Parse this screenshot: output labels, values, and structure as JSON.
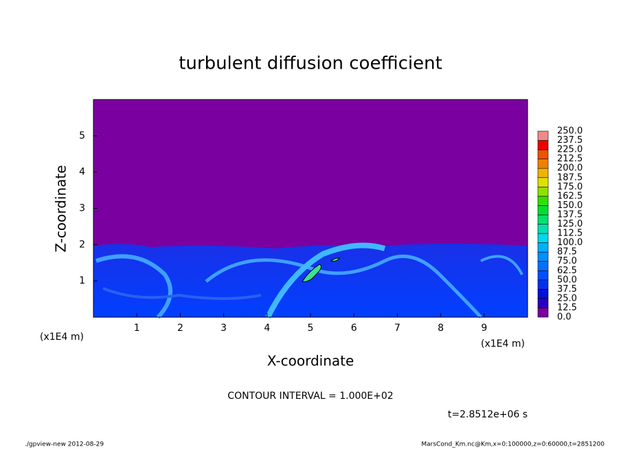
{
  "chart_data": {
    "type": "contour",
    "title": "turbulent diffusion coefficient",
    "xlabel": "X-coordinate",
    "ylabel": "Z-coordinate",
    "axis_unit": "(x1E4 m)",
    "xlim": [
      0,
      10
    ],
    "xticks": [
      1,
      2,
      3,
      4,
      5,
      6,
      7,
      8,
      9
    ],
    "ylim": [
      0,
      6
    ],
    "yticks": [
      1,
      2,
      3,
      4,
      5
    ],
    "levels": [
      {
        "value": 0,
        "label": "0.0"
      },
      {
        "value": 12.5,
        "label": "12.5"
      },
      {
        "value": 25,
        "label": "25.0"
      },
      {
        "value": 37.5,
        "label": "37.5"
      },
      {
        "value": 50,
        "label": "50.0"
      },
      {
        "value": 62.5,
        "label": "62.5"
      },
      {
        "value": 75,
        "label": "75.0"
      },
      {
        "value": 87.5,
        "label": "87.5"
      },
      {
        "value": 100,
        "label": "100.0"
      },
      {
        "value": 112.5,
        "label": "112.5"
      },
      {
        "value": 125,
        "label": "125.0"
      },
      {
        "value": 137.5,
        "label": "137.5"
      },
      {
        "value": 150,
        "label": "150.0"
      },
      {
        "value": 162.5,
        "label": "162.5"
      },
      {
        "value": 175,
        "label": "175.0"
      },
      {
        "value": 187.5,
        "label": "187.5"
      },
      {
        "value": 200,
        "label": "200.0"
      },
      {
        "value": 212.5,
        "label": "212.5"
      },
      {
        "value": 225,
        "label": "225.0"
      },
      {
        "value": 237.5,
        "label": "237.5"
      },
      {
        "value": 250,
        "label": "250.0"
      }
    ],
    "colors": [
      "#7a00a0",
      "#2a00c0",
      "#0010d8",
      "#0030f0",
      "#0050ff",
      "#0070ff",
      "#0090ff",
      "#00b0ff",
      "#00d8f0",
      "#00e0b0",
      "#00e070",
      "#00e030",
      "#30e000",
      "#90e000",
      "#e0e000",
      "#f0b400",
      "#f08000",
      "#f05000",
      "#f00000",
      "#f08a8a"
    ],
    "contour_interval": "CONTOUR INTERVAL = 1.000E+02",
    "time": "t=2.8512e+06 s",
    "footer_left": "./gpview-new  2012-08-29",
    "footer_right": "MarsCond_Km.nc@Km,x=0:100000,z=0:60000,t=2851200"
  }
}
